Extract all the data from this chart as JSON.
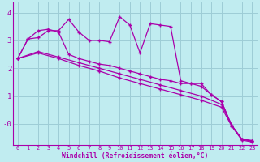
{
  "xlabel": "Windchill (Refroidissement éolien,°C)",
  "background_color": "#c0ecf0",
  "grid_color": "#9dcdd6",
  "line_color": "#aa00aa",
  "xlim": [
    -0.5,
    23.5
  ],
  "ylim": [
    -0.75,
    4.35
  ],
  "xticks": [
    0,
    1,
    2,
    3,
    4,
    5,
    6,
    7,
    8,
    9,
    10,
    11,
    12,
    13,
    14,
    15,
    16,
    17,
    18,
    19,
    20,
    21,
    22,
    23
  ],
  "yticks": [
    0,
    1,
    2,
    3,
    4
  ],
  "ytick_labels": [
    "-0",
    "1",
    "2",
    "3",
    "4"
  ],
  "line1_x": [
    0,
    1,
    2,
    3,
    4,
    5,
    6,
    7,
    8,
    9,
    10,
    11,
    12,
    13,
    14,
    15,
    16,
    17,
    18,
    19,
    20,
    21,
    22,
    23
  ],
  "line1_y": [
    2.35,
    3.05,
    3.1,
    3.35,
    3.35,
    3.75,
    3.3,
    3.0,
    3.0,
    2.95,
    3.85,
    3.55,
    2.55,
    3.6,
    3.55,
    3.5,
    1.55,
    1.45,
    1.45,
    1.05,
    0.8,
    -0.05,
    -0.55,
    -0.6
  ],
  "line2_x": [
    0,
    1,
    2,
    3,
    4,
    5,
    6,
    7,
    8,
    9,
    10,
    11,
    12,
    13,
    14,
    15,
    16,
    17,
    18,
    19,
    20,
    21,
    22,
    23
  ],
  "line2_y": [
    2.35,
    3.05,
    3.35,
    3.4,
    3.3,
    2.5,
    2.35,
    2.25,
    2.15,
    2.1,
    2.0,
    1.9,
    1.8,
    1.7,
    1.6,
    1.55,
    1.45,
    1.45,
    1.35,
    1.05,
    0.8,
    -0.05,
    -0.55,
    -0.6
  ],
  "line3_x": [
    0,
    2,
    4,
    6,
    8,
    10,
    12,
    14,
    16,
    18,
    20,
    21,
    22,
    23
  ],
  "line3_y": [
    2.35,
    2.6,
    2.4,
    2.2,
    2.0,
    1.8,
    1.6,
    1.4,
    1.2,
    1.0,
    0.7,
    -0.05,
    -0.55,
    -0.62
  ],
  "line4_x": [
    0,
    2,
    4,
    6,
    8,
    10,
    12,
    14,
    16,
    18,
    20,
    21,
    22,
    23
  ],
  "line4_y": [
    2.35,
    2.55,
    2.35,
    2.1,
    1.9,
    1.65,
    1.45,
    1.25,
    1.05,
    0.85,
    0.6,
    -0.08,
    -0.58,
    -0.65
  ]
}
